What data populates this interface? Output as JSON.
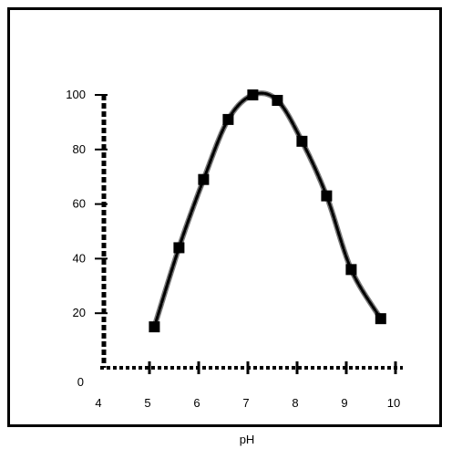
{
  "chart_data": {
    "type": "line",
    "title": "",
    "xlabel": "pH",
    "ylabel": "",
    "xlim": [
      4,
      10
    ],
    "ylim": [
      0,
      100
    ],
    "x_ticks": [
      4,
      5,
      6,
      7,
      8,
      9,
      10
    ],
    "y_ticks": [
      0,
      20,
      40,
      60,
      80,
      100
    ],
    "x_tick_labels": [
      "4",
      "5",
      "6",
      "7",
      "8",
      "9",
      "10"
    ],
    "y_tick_labels": [
      "0",
      "20",
      "40",
      "60",
      "80",
      "100"
    ],
    "grid": false,
    "legend": "none",
    "series": [
      {
        "values_x": [
          5.1,
          5.6,
          6.1,
          6.6,
          7.1,
          7.6,
          8.1,
          8.6,
          9.1,
          9.7
        ],
        "values_y": [
          15,
          44,
          69,
          91,
          100,
          98,
          83,
          63,
          36,
          18
        ],
        "marker": "square",
        "color": "#000000"
      }
    ]
  }
}
